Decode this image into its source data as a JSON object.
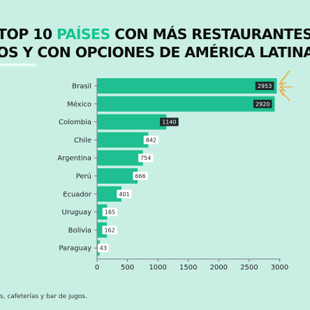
{
  "title": {
    "line1_prefix": "TOP 10 ",
    "line1_accent": "PAÍSES",
    "line1_suffix": " CON MÁS RESTAURANTES",
    "line2": "IOS Y CON OPCIONES DE AMÉRICA LATINA"
  },
  "footnote": "s, cafeterías y bar de jugos.",
  "colors": {
    "background": "#c9efe5",
    "bar": "#1fbf91",
    "accent_text": "#13c48f",
    "arrow": "#e8b04a",
    "dark_label_bg": "#1f2a2a",
    "light_label_bg": "#ffffff"
  },
  "chart_data": {
    "type": "bar",
    "orientation": "horizontal",
    "categories": [
      "Brasil",
      "México",
      "Colombia",
      "Chile",
      "Argentina",
      "Perú",
      "Ecuador",
      "Uruguay",
      "Bolivia",
      "Paraguay"
    ],
    "values": [
      2953,
      2920,
      1140,
      842,
      754,
      666,
      401,
      165,
      162,
      43
    ],
    "data_labels": [
      "2953",
      "2920",
      "1140",
      "842",
      "754",
      "666",
      "401",
      "165",
      "162",
      "43"
    ],
    "x_ticks": [
      "0",
      "500",
      "1000",
      "1500",
      "2000",
      "2500",
      "3000"
    ],
    "xlim": [
      0,
      3000
    ],
    "grid": false
  }
}
